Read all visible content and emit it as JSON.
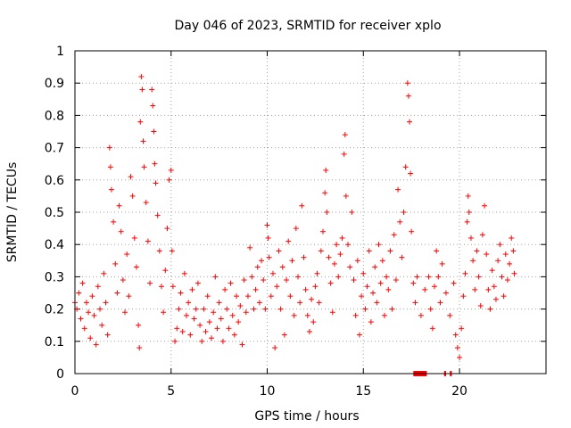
{
  "chart_data": {
    "type": "scatter",
    "title": "Day 046 of 2023, SRMTID for receiver xplo",
    "xlabel": "GPS time / hours",
    "ylabel": "SRMTID / TECUs",
    "xlim": [
      0,
      24.5
    ],
    "ylim": [
      0,
      1
    ],
    "xticks": [
      0,
      5,
      10,
      15,
      20
    ],
    "xtick_labels": [
      "0",
      "5",
      "10",
      "15",
      "20"
    ],
    "yticks": [
      0,
      0.1,
      0.2,
      0.3,
      0.4,
      0.5,
      0.6,
      0.7,
      0.8,
      0.9,
      1
    ],
    "ytick_labels": [
      "0",
      "0.1",
      "0.2",
      "0.3",
      "0.4",
      "0.5",
      "0.6",
      "0.7",
      "0.8",
      "0.9",
      "1"
    ],
    "grid": true,
    "marker": "+",
    "color": "#ff0000",
    "series": [
      {
        "name": "SRMTID",
        "points": [
          [
            0.0,
            0.22
          ],
          [
            0.1,
            0.2
          ],
          [
            0.2,
            0.25
          ],
          [
            0.3,
            0.17
          ],
          [
            0.4,
            0.28
          ],
          [
            0.5,
            0.14
          ],
          [
            0.6,
            0.22
          ],
          [
            0.7,
            0.19
          ],
          [
            0.8,
            0.11
          ],
          [
            0.9,
            0.24
          ],
          [
            1.0,
            0.18
          ],
          [
            1.1,
            0.09
          ],
          [
            1.2,
            0.27
          ],
          [
            1.3,
            0.2
          ],
          [
            1.4,
            0.15
          ],
          [
            1.5,
            0.31
          ],
          [
            1.6,
            0.22
          ],
          [
            1.7,
            0.12
          ],
          [
            1.8,
            0.7
          ],
          [
            1.85,
            0.64
          ],
          [
            1.9,
            0.57
          ],
          [
            2.0,
            0.47
          ],
          [
            2.1,
            0.34
          ],
          [
            2.2,
            0.25
          ],
          [
            2.3,
            0.52
          ],
          [
            2.4,
            0.44
          ],
          [
            2.5,
            0.29
          ],
          [
            2.6,
            0.19
          ],
          [
            2.7,
            0.37
          ],
          [
            2.8,
            0.24
          ],
          [
            2.9,
            0.61
          ],
          [
            3.0,
            0.55
          ],
          [
            3.1,
            0.42
          ],
          [
            3.2,
            0.33
          ],
          [
            3.3,
            0.15
          ],
          [
            3.35,
            0.08
          ],
          [
            3.4,
            0.78
          ],
          [
            3.45,
            0.92
          ],
          [
            3.5,
            0.88
          ],
          [
            3.55,
            0.72
          ],
          [
            3.6,
            0.64
          ],
          [
            3.7,
            0.53
          ],
          [
            3.8,
            0.41
          ],
          [
            3.9,
            0.28
          ],
          [
            4.0,
            0.88
          ],
          [
            4.05,
            0.83
          ],
          [
            4.1,
            0.75
          ],
          [
            4.15,
            0.65
          ],
          [
            4.2,
            0.59
          ],
          [
            4.3,
            0.49
          ],
          [
            4.4,
            0.38
          ],
          [
            4.5,
            0.27
          ],
          [
            4.6,
            0.19
          ],
          [
            4.7,
            0.32
          ],
          [
            4.8,
            0.45
          ],
          [
            4.9,
            0.6
          ],
          [
            5.0,
            0.63
          ],
          [
            5.05,
            0.38
          ],
          [
            5.1,
            0.27
          ],
          [
            5.2,
            0.1
          ],
          [
            5.3,
            0.14
          ],
          [
            5.4,
            0.2
          ],
          [
            5.5,
            0.25
          ],
          [
            5.6,
            0.13
          ],
          [
            5.7,
            0.31
          ],
          [
            5.8,
            0.18
          ],
          [
            5.9,
            0.22
          ],
          [
            6.0,
            0.12
          ],
          [
            6.1,
            0.26
          ],
          [
            6.2,
            0.17
          ],
          [
            6.3,
            0.2
          ],
          [
            6.4,
            0.28
          ],
          [
            6.5,
            0.15
          ],
          [
            6.6,
            0.1
          ],
          [
            6.7,
            0.2
          ],
          [
            6.8,
            0.13
          ],
          [
            6.9,
            0.24
          ],
          [
            7.0,
            0.16
          ],
          [
            7.1,
            0.11
          ],
          [
            7.2,
            0.19
          ],
          [
            7.3,
            0.3
          ],
          [
            7.4,
            0.14
          ],
          [
            7.5,
            0.22
          ],
          [
            7.6,
            0.17
          ],
          [
            7.7,
            0.1
          ],
          [
            7.8,
            0.26
          ],
          [
            7.9,
            0.2
          ],
          [
            8.0,
            0.14
          ],
          [
            8.1,
            0.28
          ],
          [
            8.2,
            0.18
          ],
          [
            8.3,
            0.12
          ],
          [
            8.4,
            0.24
          ],
          [
            8.5,
            0.16
          ],
          [
            8.6,
            0.21
          ],
          [
            8.7,
            0.09
          ],
          [
            8.8,
            0.29
          ],
          [
            8.9,
            0.19
          ],
          [
            9.0,
            0.24
          ],
          [
            9.1,
            0.39
          ],
          [
            9.2,
            0.3
          ],
          [
            9.3,
            0.2
          ],
          [
            9.4,
            0.26
          ],
          [
            9.5,
            0.33
          ],
          [
            9.6,
            0.22
          ],
          [
            9.7,
            0.35
          ],
          [
            9.8,
            0.29
          ],
          [
            9.9,
            0.2
          ],
          [
            10.0,
            0.46
          ],
          [
            10.05,
            0.42
          ],
          [
            10.1,
            0.36
          ],
          [
            10.2,
            0.24
          ],
          [
            10.3,
            0.31
          ],
          [
            10.4,
            0.08
          ],
          [
            10.5,
            0.27
          ],
          [
            10.6,
            0.38
          ],
          [
            10.7,
            0.2
          ],
          [
            10.8,
            0.33
          ],
          [
            10.9,
            0.12
          ],
          [
            11.0,
            0.29
          ],
          [
            11.1,
            0.41
          ],
          [
            11.2,
            0.24
          ],
          [
            11.3,
            0.35
          ],
          [
            11.4,
            0.18
          ],
          [
            11.5,
            0.45
          ],
          [
            11.6,
            0.3
          ],
          [
            11.7,
            0.22
          ],
          [
            11.8,
            0.52
          ],
          [
            11.9,
            0.36
          ],
          [
            12.0,
            0.26
          ],
          [
            12.1,
            0.18
          ],
          [
            12.2,
            0.13
          ],
          [
            12.3,
            0.23
          ],
          [
            12.4,
            0.16
          ],
          [
            12.5,
            0.27
          ],
          [
            12.6,
            0.31
          ],
          [
            12.7,
            0.22
          ],
          [
            12.8,
            0.38
          ],
          [
            12.9,
            0.44
          ],
          [
            13.0,
            0.56
          ],
          [
            13.05,
            0.63
          ],
          [
            13.1,
            0.5
          ],
          [
            13.2,
            0.36
          ],
          [
            13.3,
            0.28
          ],
          [
            13.4,
            0.19
          ],
          [
            13.5,
            0.34
          ],
          [
            13.6,
            0.4
          ],
          [
            13.7,
            0.3
          ],
          [
            13.8,
            0.37
          ],
          [
            13.9,
            0.42
          ],
          [
            14.0,
            0.68
          ],
          [
            14.05,
            0.74
          ],
          [
            14.1,
            0.55
          ],
          [
            14.2,
            0.4
          ],
          [
            14.3,
            0.33
          ],
          [
            14.4,
            0.5
          ],
          [
            14.5,
            0.29
          ],
          [
            14.6,
            0.18
          ],
          [
            14.7,
            0.35
          ],
          [
            14.8,
            0.12
          ],
          [
            14.9,
            0.24
          ],
          [
            15.0,
            0.31
          ],
          [
            15.1,
            0.2
          ],
          [
            15.2,
            0.27
          ],
          [
            15.3,
            0.38
          ],
          [
            15.4,
            0.16
          ],
          [
            15.5,
            0.25
          ],
          [
            15.6,
            0.33
          ],
          [
            15.7,
            0.22
          ],
          [
            15.8,
            0.4
          ],
          [
            15.9,
            0.28
          ],
          [
            16.0,
            0.35
          ],
          [
            16.1,
            0.18
          ],
          [
            16.2,
            0.3
          ],
          [
            16.3,
            0.26
          ],
          [
            16.4,
            0.38
          ],
          [
            16.5,
            0.2
          ],
          [
            16.6,
            0.43
          ],
          [
            16.7,
            0.29
          ],
          [
            16.8,
            0.57
          ],
          [
            16.9,
            0.47
          ],
          [
            17.0,
            0.36
          ],
          [
            17.1,
            0.5
          ],
          [
            17.2,
            0.64
          ],
          [
            17.3,
            0.9
          ],
          [
            17.35,
            0.86
          ],
          [
            17.4,
            0.78
          ],
          [
            17.45,
            0.62
          ],
          [
            17.5,
            0.44
          ],
          [
            17.6,
            0.28
          ],
          [
            17.7,
            0.22
          ],
          [
            17.8,
            0.3
          ],
          [
            18.0,
            0.18
          ],
          [
            18.2,
            0.26
          ],
          [
            18.4,
            0.3
          ],
          [
            18.5,
            0.2
          ],
          [
            18.6,
            0.14
          ],
          [
            18.7,
            0.27
          ],
          [
            18.8,
            0.38
          ],
          [
            18.9,
            0.3
          ],
          [
            19.0,
            0.22
          ],
          [
            19.1,
            0.34
          ],
          [
            19.3,
            0.25
          ],
          [
            19.5,
            0.18
          ],
          [
            19.7,
            0.28
          ],
          [
            19.8,
            0.12
          ],
          [
            19.9,
            0.08
          ],
          [
            20.0,
            0.05
          ],
          [
            20.1,
            0.14
          ],
          [
            20.2,
            0.24
          ],
          [
            20.3,
            0.31
          ],
          [
            20.4,
            0.47
          ],
          [
            20.45,
            0.55
          ],
          [
            20.5,
            0.5
          ],
          [
            20.6,
            0.42
          ],
          [
            20.7,
            0.35
          ],
          [
            20.8,
            0.26
          ],
          [
            20.9,
            0.38
          ],
          [
            21.0,
            0.3
          ],
          [
            21.1,
            0.21
          ],
          [
            21.2,
            0.43
          ],
          [
            21.3,
            0.52
          ],
          [
            21.4,
            0.37
          ],
          [
            21.5,
            0.26
          ],
          [
            21.6,
            0.2
          ],
          [
            21.7,
            0.32
          ],
          [
            21.8,
            0.27
          ],
          [
            21.9,
            0.23
          ],
          [
            22.0,
            0.35
          ],
          [
            22.1,
            0.4
          ],
          [
            22.2,
            0.3
          ],
          [
            22.3,
            0.24
          ],
          [
            22.4,
            0.37
          ],
          [
            22.5,
            0.29
          ],
          [
            22.6,
            0.34
          ],
          [
            22.7,
            0.42
          ],
          [
            22.8,
            0.38
          ],
          [
            22.85,
            0.31
          ]
        ]
      }
    ],
    "data_gaps": [
      [
        17.6,
        18.3
      ],
      [
        19.2,
        19.3
      ],
      [
        19.5,
        19.6
      ]
    ]
  }
}
